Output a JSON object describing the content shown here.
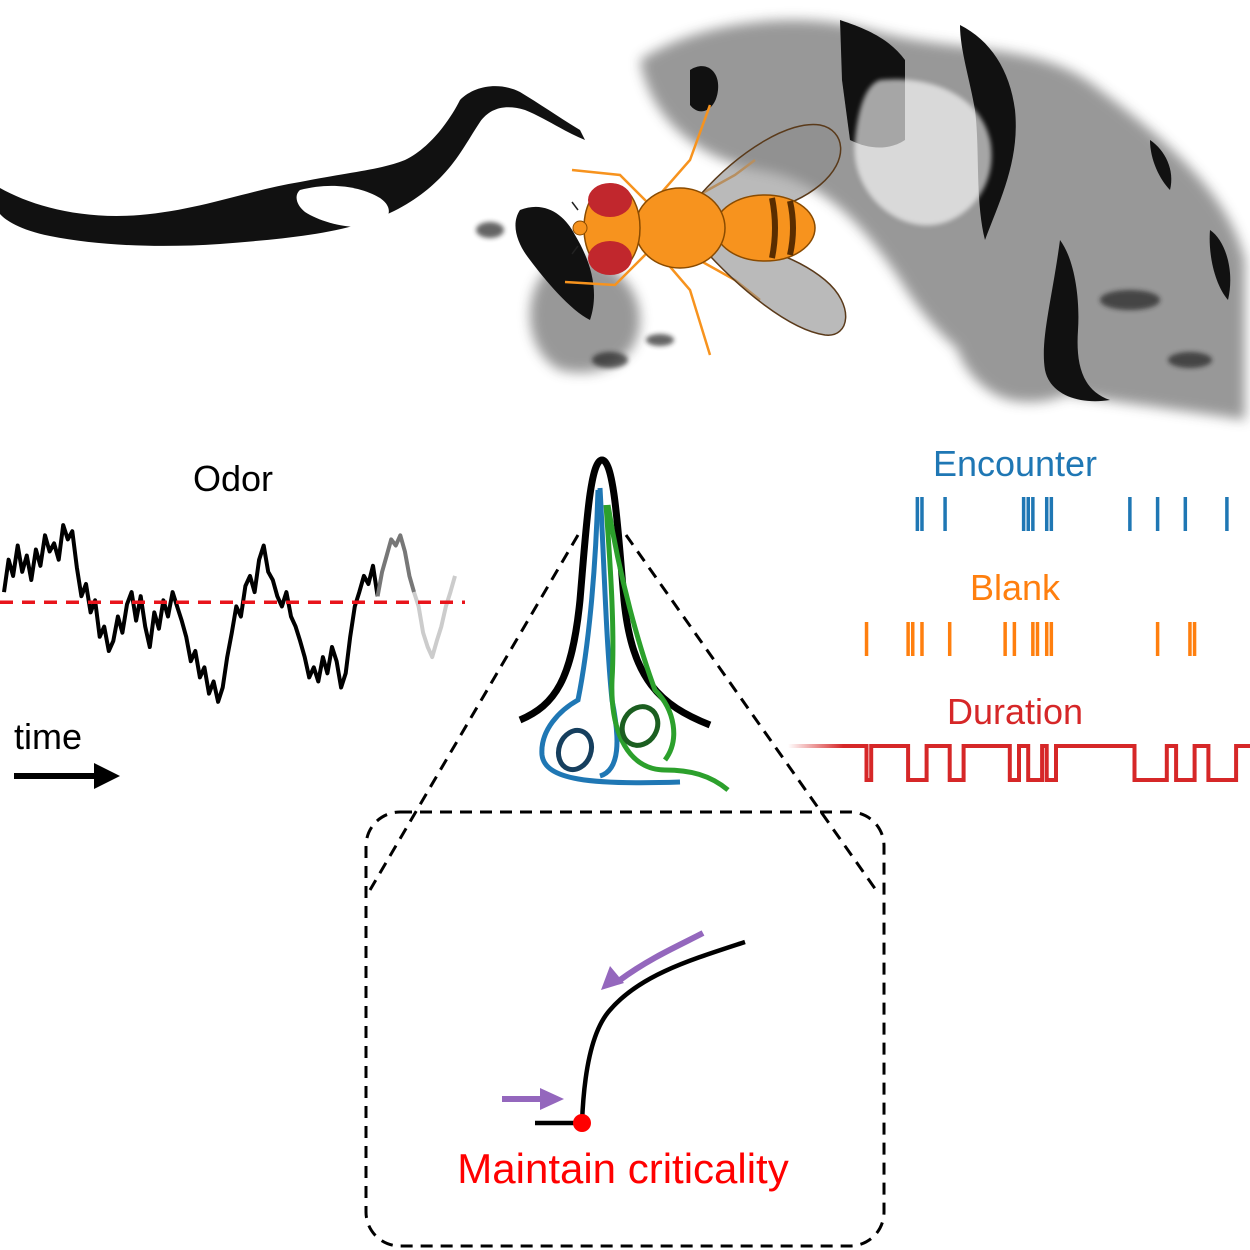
{
  "labels": {
    "odor": "Odor",
    "time": "time",
    "encounter": "Encounter",
    "blank": "Blank",
    "duration": "Duration",
    "criticality": "Maintain criticality"
  },
  "colors": {
    "encounter": "#1f77b4",
    "blank": "#ff7f0e",
    "duration": "#d62728",
    "threshold": "#e8141b",
    "criticality": "#ff0000",
    "arrow": "#9467bd",
    "neuron_green": "#2ca02c",
    "fly_body": "#f7931e",
    "fly_eye": "#c1272d"
  },
  "icons": [
    "fly-icon",
    "olfactory-sensillum-icon",
    "time-arrow-icon",
    "feedback-arrow-icon"
  ],
  "odor_signal": [
    0.62,
    0.78,
    0.7,
    0.85,
    0.72,
    0.8,
    0.68,
    0.83,
    0.75,
    0.9,
    0.82,
    0.86,
    0.78,
    0.95,
    0.88,
    0.92,
    0.74,
    0.6,
    0.66,
    0.52,
    0.58,
    0.4,
    0.45,
    0.33,
    0.38,
    0.5,
    0.42,
    0.56,
    0.62,
    0.48,
    0.6,
    0.45,
    0.35,
    0.52,
    0.44,
    0.58,
    0.5,
    0.62,
    0.55,
    0.48,
    0.4,
    0.28,
    0.33,
    0.2,
    0.25,
    0.12,
    0.18,
    0.08,
    0.15,
    0.3,
    0.42,
    0.55,
    0.5,
    0.65,
    0.7,
    0.62,
    0.78,
    0.85,
    0.72,
    0.68,
    0.6,
    0.55,
    0.62,
    0.5,
    0.45,
    0.38,
    0.3,
    0.2,
    0.25,
    0.18,
    0.3,
    0.22,
    0.35,
    0.28,
    0.15,
    0.22,
    0.4,
    0.55,
    0.62,
    0.7,
    0.66,
    0.75,
    0.6,
    0.72,
    0.8,
    0.88,
    0.85,
    0.9,
    0.82,
    0.7,
    0.62,
    0.55,
    0.42,
    0.35,
    0.3,
    0.38,
    0.45,
    0.55,
    0.62,
    0.7
  ],
  "odor_threshold": 0.57,
  "encounter_events": [
    0.28,
    0.29,
    0.34,
    0.51,
    0.52,
    0.53,
    0.56,
    0.57,
    0.74,
    0.8,
    0.86,
    0.95
  ],
  "blank_events": [
    0.17,
    0.26,
    0.27,
    0.29,
    0.35,
    0.47,
    0.49,
    0.53,
    0.54,
    0.56,
    0.57,
    0.8,
    0.87,
    0.88
  ],
  "duration_on": [
    [
      0.17,
      0.18
    ],
    [
      0.26,
      0.3
    ],
    [
      0.35,
      0.38
    ],
    [
      0.48,
      0.5
    ],
    [
      0.52,
      0.55
    ],
    [
      0.56,
      0.58
    ],
    [
      0.75,
      0.82
    ],
    [
      0.84,
      0.88
    ],
    [
      0.91,
      0.97
    ]
  ]
}
